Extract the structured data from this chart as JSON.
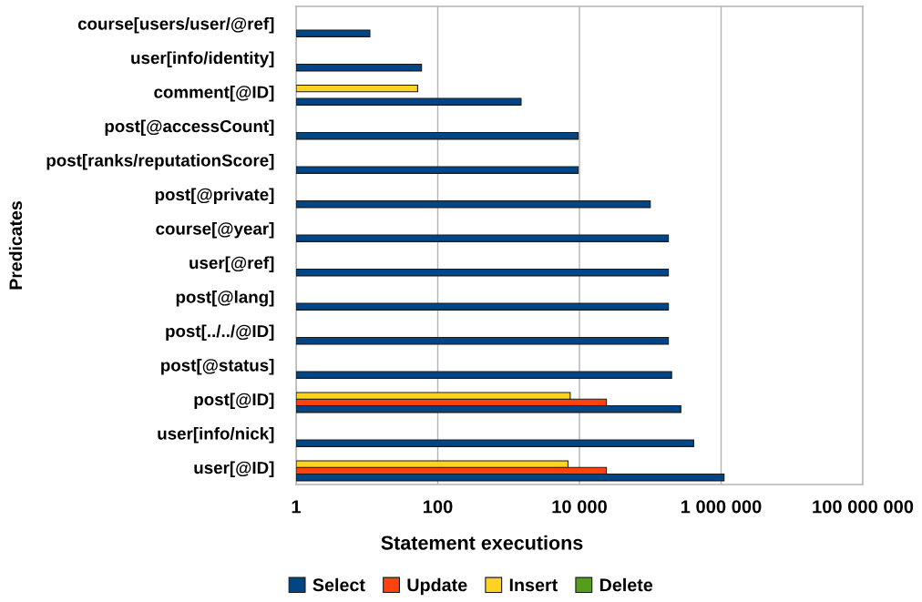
{
  "chart_data": {
    "type": "bar",
    "orientation": "horizontal",
    "xlabel": "Statement executions",
    "ylabel": "Predicates",
    "categories": [
      "course[users/user/@ref]",
      "user[info/identity]",
      "comment[@ID]",
      "post[@accessCount]",
      "post[ranks/reputationScore]",
      "post[@private]",
      "course[@year]",
      "user[@ref]",
      "post[@lang]",
      "post[../../@ID]",
      "post[@status]",
      "post[@ID]",
      "user[info/nick]",
      "user[@ID]"
    ],
    "series": [
      {
        "name": "Select",
        "color": "#004586",
        "values": [
          11,
          59,
          1500,
          9600,
          9600,
          100000,
          180000,
          180000,
          180000,
          180000,
          200000,
          270000,
          410000,
          1100000
        ]
      },
      {
        "name": "Update",
        "color": "#ff420e",
        "values": [
          null,
          null,
          null,
          null,
          null,
          null,
          null,
          null,
          null,
          null,
          null,
          24000,
          null,
          24000
        ]
      },
      {
        "name": "Insert",
        "color": "#ffd320",
        "values": [
          null,
          null,
          52,
          null,
          null,
          null,
          null,
          null,
          null,
          null,
          null,
          7400,
          null,
          6900
        ]
      },
      {
        "name": "Delete",
        "color": "#579d1c",
        "values": [
          null,
          null,
          null,
          null,
          null,
          null,
          null,
          null,
          null,
          null,
          null,
          null,
          null,
          null
        ]
      }
    ],
    "log": "x",
    "xlim": [
      1,
      100000000
    ],
    "xticks": [
      1,
      100,
      {
        "value": 10000,
        "label": "10 000"
      },
      {
        "value": 1000000,
        "label": "1 000 000"
      },
      {
        "value": 100000000,
        "label": "100 000 000"
      }
    ],
    "grid": "x",
    "legend": "bottom"
  }
}
